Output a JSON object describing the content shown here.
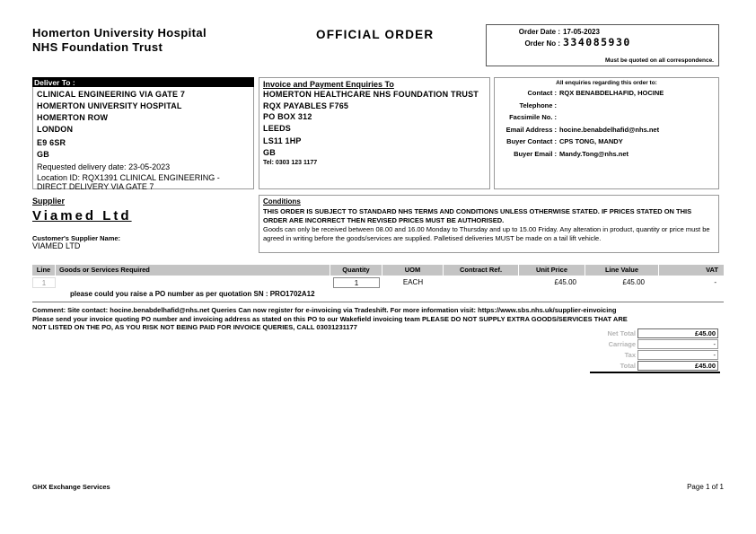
{
  "header": {
    "trust_name": "Homerton University Hospital\nNHS Foundation Trust",
    "title": "OFFICIAL ORDER",
    "order_date_label": "Order Date :",
    "order_date": "17-05-2023",
    "order_no_label": "Order No :",
    "order_no": "334085930",
    "order_note": "Must be quoted on all correspondence."
  },
  "deliver_to": {
    "label": "Deliver To :",
    "address_lines": [
      "CLINICAL ENGINEERING VIA GATE 7",
      "HOMERTON UNIVERSITY HOSPITAL",
      "HOMERTON ROW",
      "LONDON",
      "E9 6SR",
      "GB"
    ],
    "requested_delivery": "Requested delivery date: 23-05-2023",
    "location_id": "Location ID: RQX1391 CLINICAL ENGINEERING - DIRECT DELIVERY VIA GATE 7"
  },
  "invoice_to": {
    "label": "Invoice and Payment Enquiries To",
    "address_lines": [
      "HOMERTON HEALTHCARE NHS FOUNDATION TRUST",
      "RQX PAYABLES F765",
      "PO BOX 312",
      "LEEDS",
      "LS11 1HP",
      "GB"
    ],
    "tel": "Tel: 0303 123 1177"
  },
  "enquiries": {
    "heading": "All enquiries regarding this order to:",
    "rows": [
      {
        "label": "Contact :",
        "value": "RQX BENABDELHAFID, HOCINE"
      },
      {
        "label": "Telephone :",
        "value": ""
      },
      {
        "label": "Facsimile No. :",
        "value": ""
      },
      {
        "label": "Email Address :",
        "value": "hocine.benabdelhafid@nhs.net"
      },
      {
        "label": "Buyer Contact :",
        "value": "CPS TONG, MANDY"
      },
      {
        "label": "Buyer Email :",
        "value": "Mandy.Tong@nhs.net"
      }
    ]
  },
  "supplier": {
    "label": "Supplier",
    "name": "Viamed Ltd",
    "customer_supplier_label": "Customer's Supplier Name:",
    "customer_supplier_name": "VIAMED LTD"
  },
  "conditions": {
    "label": "Conditions",
    "paragraph1": "THIS ORDER IS SUBJECT TO STANDARD NHS TERMS AND CONDITIONS UNLESS OTHERWISE STATED. IF PRICES STATED ON THIS ORDER ARE INCORRECT THEN REVISED PRICES MUST BE AUTHORISED.",
    "paragraph2": "Goods can only be received between 08.00 and 16.00 Monday to Thursday and up to 15.00 Friday. Any alteration in product, quantity or price must be agreed in writing before the goods/services are supplied. Palletised deliveries MUST be made on a tail lift vehicle."
  },
  "order_table": {
    "headers": {
      "line": "Line",
      "goods": "Goods or Services Required",
      "quantity": "Quantity",
      "uom": "UOM",
      "contract_ref": "Contract Ref.",
      "unit_price": "Unit Price",
      "line_value": "Line Value",
      "vat": "VAT"
    },
    "rows": [
      {
        "line": "1",
        "description": "please could you raise a PO number as per quotation SN : PRO1702A12",
        "quantity": "1",
        "uom": "EACH",
        "contract_ref": "",
        "unit_price": "£45.00",
        "line_value": "£45.00",
        "vat": "-"
      }
    ]
  },
  "comment": "Comment: Site contact: hocine.benabdelhafid@nhs.net Queries Can now register for e-invoicing via Tradeshift. For more information visit: https://www.sbs.nhs.uk/supplier-einvoicing Please send your invoice quoting PO number and invoicing address as stated on this PO to our Wakefield invoicing team PLEASE DO NOT SUPPLY EXTRA GOODS/SERVICES THAT ARE NOT LISTED ON THE PO, AS YOU RISK NOT BEING PAID FOR INVOICE QUERIES, CALL 03031231177",
  "totals": {
    "rows": [
      {
        "label": "Net Total",
        "value": "£45.00"
      },
      {
        "label": "Carriage",
        "value": "-"
      },
      {
        "label": "Tax",
        "value": "-"
      },
      {
        "label": "Total",
        "value": "£45.00"
      }
    ]
  },
  "footer": {
    "left": "GHX Exchange Services",
    "right": "Page 1 of 1"
  }
}
